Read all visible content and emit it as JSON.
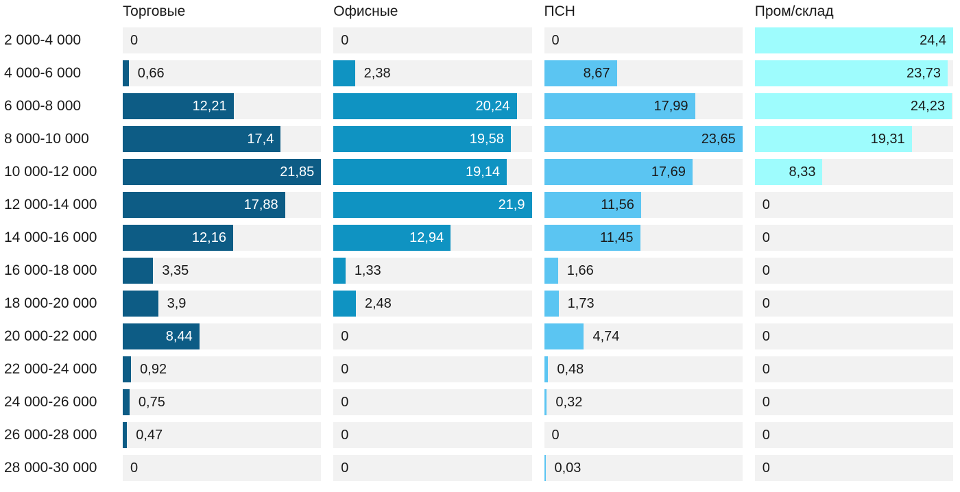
{
  "chart_data": {
    "type": "bar",
    "orientation": "horizontal",
    "title": "",
    "value_format": "decimal-comma",
    "scaling": "each series scaled so its own max fills the full track width",
    "track_color": "#f2f2f2",
    "text_color": "#1a1a1a",
    "legend_position": "column headers on top",
    "grid": false,
    "categories": [
      "2 000-4 000",
      "4 000-6 000",
      "6 000-8 000",
      "8 000-10 000",
      "10 000-12 000",
      "12 000-14 000",
      "14 000-16 000",
      "16 000-18 000",
      "18 000-20 000",
      "20 000-22 000",
      "22 000-24 000",
      "24 000-26 000",
      "26 000-28 000",
      "28 000-30 000"
    ],
    "series": [
      {
        "name": "Торговые",
        "color": "#0d5c85",
        "inside_label_color": "#ffffff",
        "xlim": [
          0,
          21.85
        ],
        "values": [
          0,
          0.66,
          12.21,
          17.4,
          21.85,
          17.88,
          12.16,
          3.35,
          3.9,
          8.44,
          0.92,
          0.75,
          0.47,
          0
        ]
      },
      {
        "name": "Офисные",
        "color": "#0f93c2",
        "inside_label_color": "#ffffff",
        "xlim": [
          0,
          21.9
        ],
        "values": [
          0,
          2.38,
          20.24,
          19.58,
          19.14,
          21.9,
          12.94,
          1.33,
          2.48,
          0,
          0,
          0,
          0,
          0
        ]
      },
      {
        "name": "ПСН",
        "color": "#5bc5f2",
        "inside_label_color": "#1a1a1a",
        "xlim": [
          0,
          23.65
        ],
        "values": [
          0,
          8.67,
          17.99,
          23.65,
          17.69,
          11.56,
          11.45,
          1.66,
          1.73,
          4.74,
          0.48,
          0.32,
          0,
          0.03
        ]
      },
      {
        "name": "Пром/склад",
        "color": "#9efcfd",
        "inside_label_color": "#1a1a1a",
        "xlim": [
          0,
          24.4
        ],
        "values": [
          24.4,
          23.73,
          24.23,
          19.31,
          8.33,
          0,
          0,
          0,
          0,
          0,
          0,
          0,
          0,
          0
        ]
      }
    ]
  }
}
